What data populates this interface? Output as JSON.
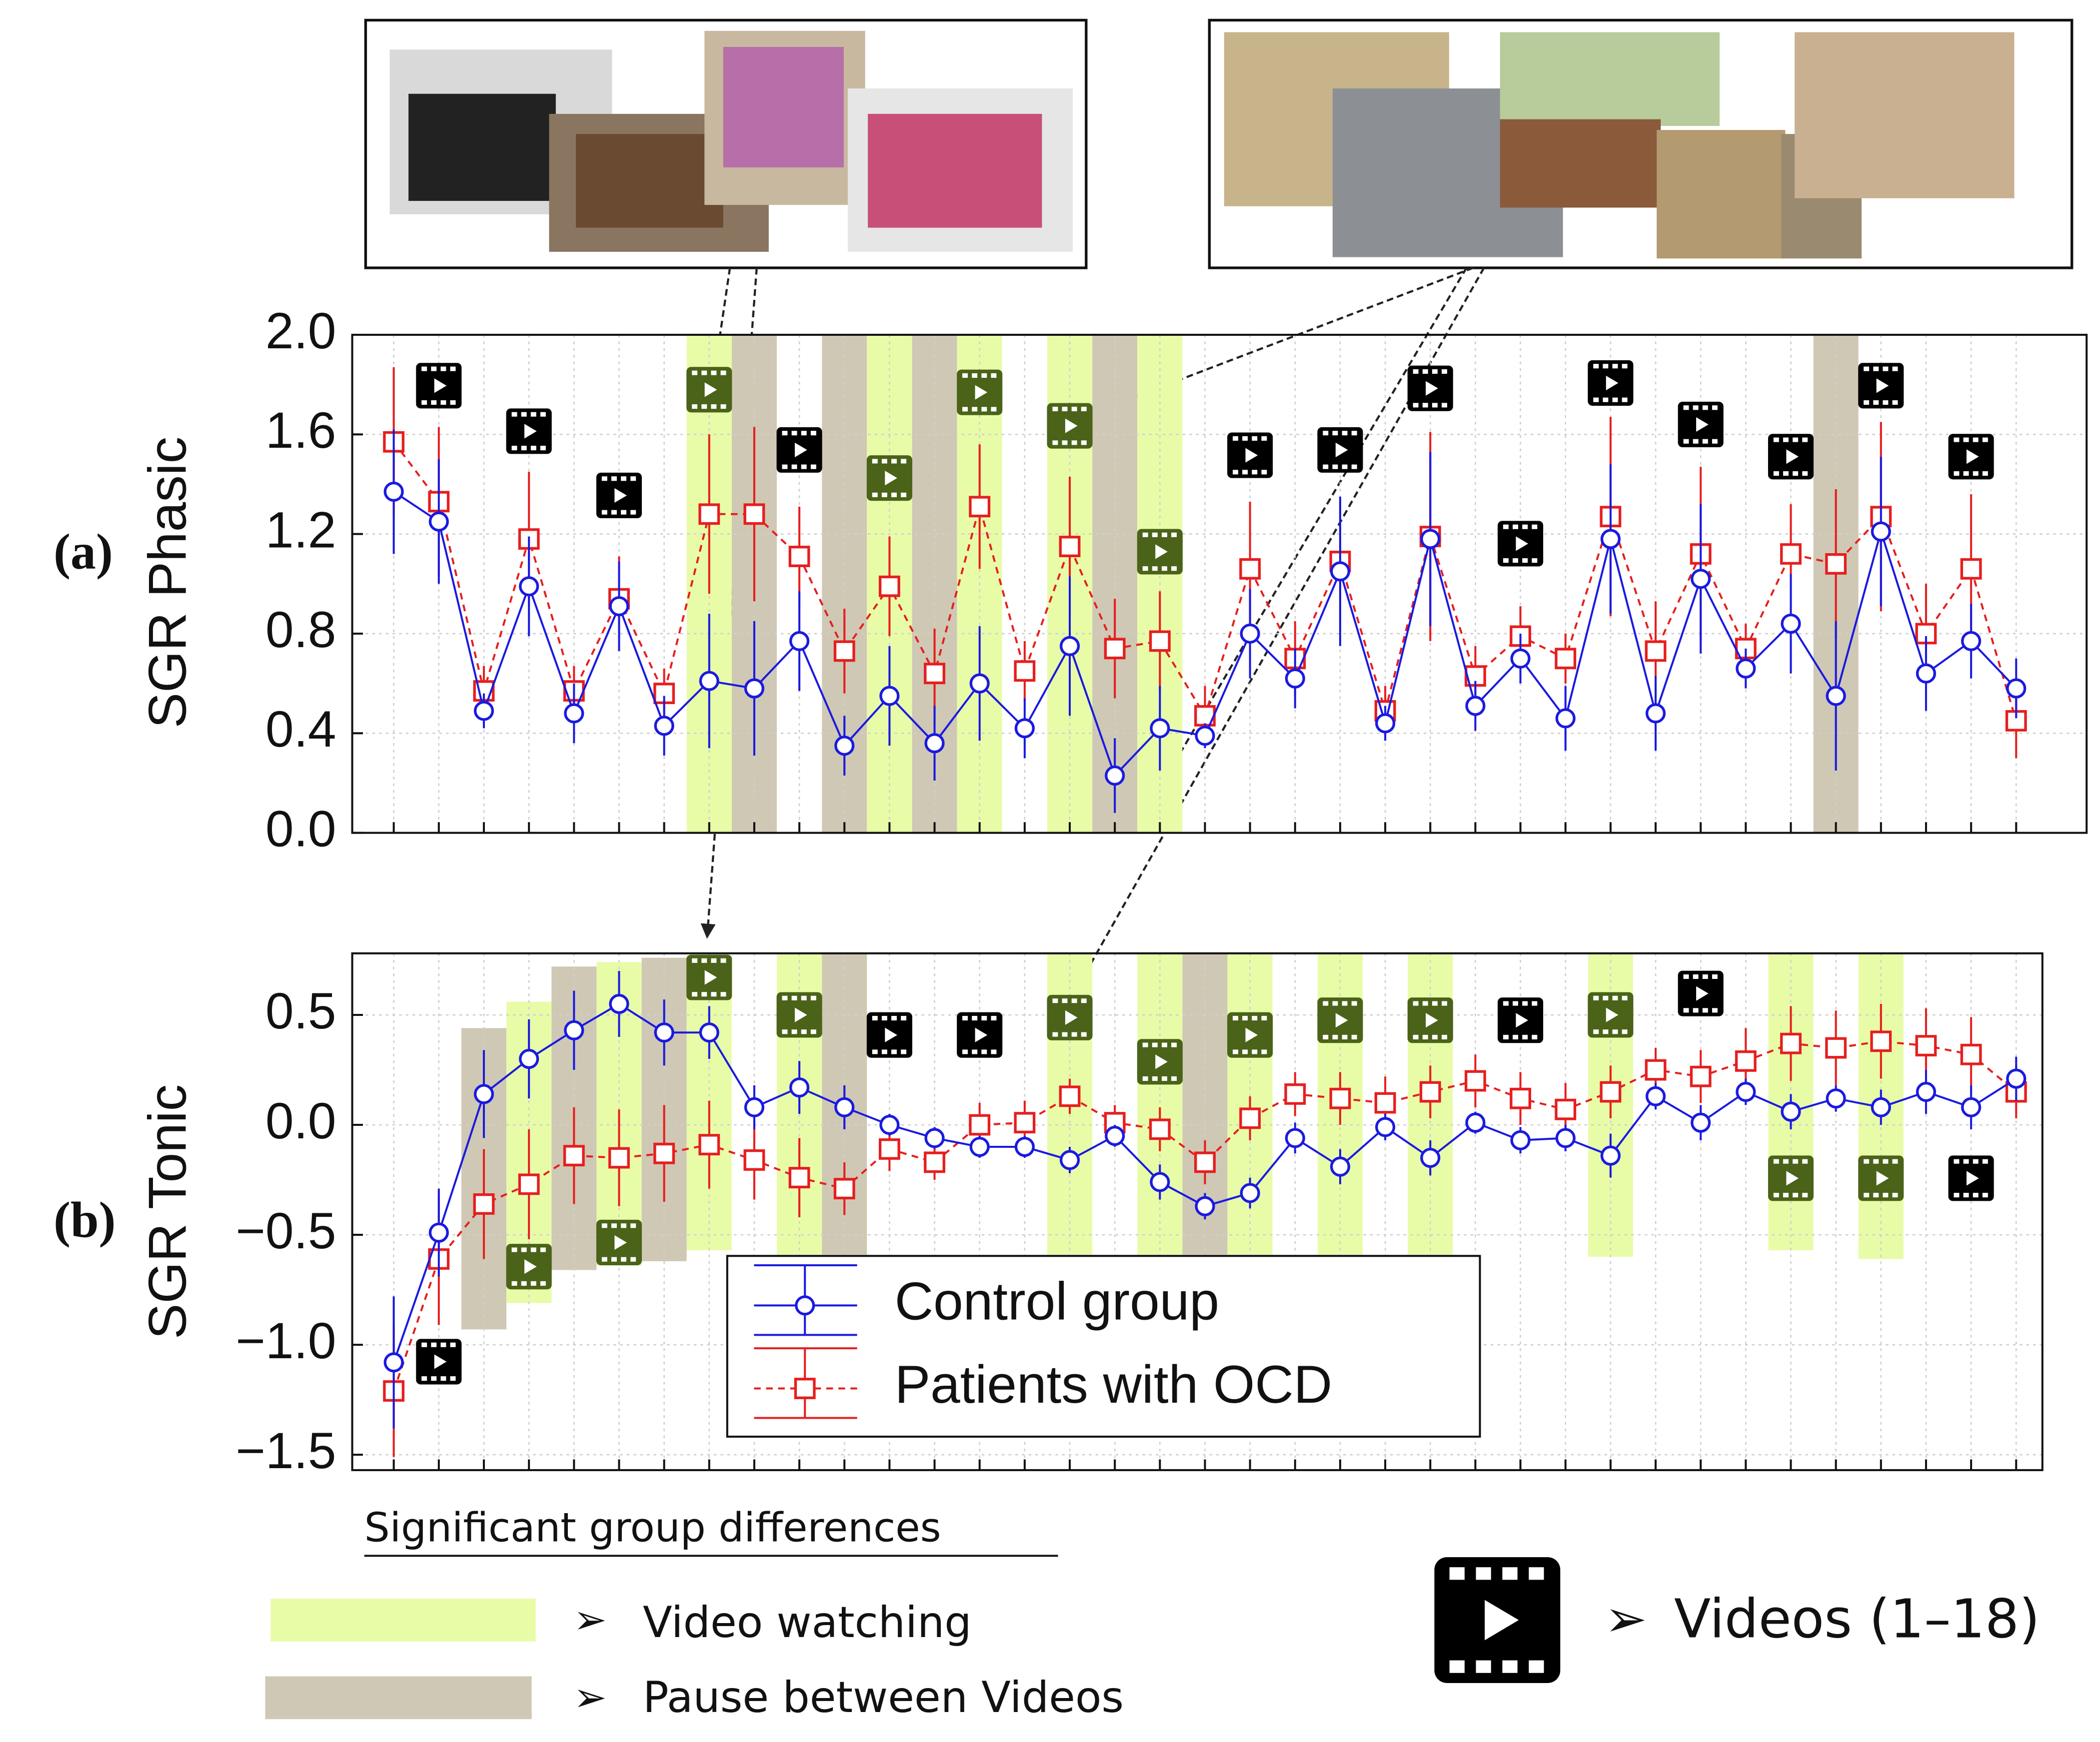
{
  "chart_data": [
    {
      "type": "line",
      "label": "(a)",
      "ylabel": "SGR Phasic",
      "categories": [
        null,
        null,
        null,
        null,
        null,
        null,
        null,
        null,
        null,
        null,
        null,
        null,
        null,
        null,
        null,
        null,
        null,
        null,
        null,
        null,
        null,
        null,
        null,
        null,
        null,
        null,
        null,
        null,
        null,
        null,
        null,
        null,
        null,
        null,
        null,
        null,
        null
      ],
      "ylim": [
        0,
        2.0
      ],
      "yticks": [
        {
          "value": 0,
          "label": "0.0"
        },
        {
          "value": 0.4,
          "label": "0.4"
        },
        {
          "value": 0.8,
          "label": "0.8"
        },
        {
          "value": 1.2,
          "label": "1.2"
        },
        {
          "value": 1.6,
          "label": "1.6"
        },
        {
          "value": 2.0,
          "label": "2.0"
        }
      ],
      "grid": true,
      "series": [
        {
          "color": "#1a1ae0",
          "marker": "circle",
          "line_style": "solid",
          "values": [
            1.37,
            1.25,
            0.49,
            0.99,
            0.48,
            0.91,
            0.43,
            0.61,
            0.58,
            0.77,
            0.35,
            0.55,
            0.36,
            0.6,
            0.42,
            0.75,
            0.23,
            0.42,
            0.39,
            0.8,
            0.62,
            1.05,
            0.44,
            1.18,
            0.51,
            0.7,
            0.46,
            1.18,
            0.48,
            1.02,
            0.66,
            0.84,
            0.55,
            1.21,
            0.64,
            0.77,
            0.58
          ],
          "errors": [
            0.25,
            0.25,
            0.07,
            0.2,
            0.12,
            0.18,
            0.12,
            0.27,
            0.27,
            0.2,
            0.12,
            0.2,
            0.15,
            0.23,
            0.12,
            0.28,
            0.15,
            0.17,
            0.05,
            0.18,
            0.12,
            0.3,
            0.07,
            0.35,
            0.1,
            0.1,
            0.13,
            0.3,
            0.15,
            0.3,
            0.08,
            0.2,
            0.3,
            0.3,
            0.15,
            0.15,
            0.12
          ]
        },
        {
          "color": "#e61e1e",
          "marker": "square",
          "line_style": "dashed",
          "values": [
            1.57,
            1.33,
            0.57,
            1.18,
            0.57,
            0.94,
            0.56,
            1.28,
            1.28,
            1.11,
            0.73,
            0.99,
            0.64,
            1.31,
            0.65,
            1.15,
            0.74,
            0.77,
            0.47,
            1.06,
            0.7,
            1.09,
            0.49,
            1.19,
            0.63,
            0.79,
            0.7,
            1.27,
            0.73,
            1.12,
            0.74,
            1.12,
            1.08,
            1.27,
            0.8,
            1.06,
            0.45
          ],
          "errors": [
            0.3,
            0.3,
            0.1,
            0.27,
            0.1,
            0.17,
            0.1,
            0.32,
            0.35,
            0.2,
            0.17,
            0.2,
            0.18,
            0.25,
            0.12,
            0.28,
            0.2,
            0.2,
            0.12,
            0.27,
            0.15,
            0.25,
            0.1,
            0.42,
            0.12,
            0.12,
            0.1,
            0.4,
            0.2,
            0.35,
            0.1,
            0.2,
            0.3,
            0.38,
            0.2,
            0.3,
            0.15
          ]
        }
      ],
      "bands": [
        {
          "index": 7,
          "kind": 0
        },
        {
          "index": 8,
          "kind": 1
        },
        {
          "index": 10,
          "kind": 1
        },
        {
          "index": 11,
          "kind": 0
        },
        {
          "index": 12,
          "kind": 1
        },
        {
          "index": 13,
          "kind": 0
        },
        {
          "index": 15,
          "kind": 0
        },
        {
          "index": 16,
          "kind": 1
        },
        {
          "index": 17,
          "kind": 0
        },
        {
          "index": 32,
          "kind": 1
        }
      ]
    },
    {
      "type": "line",
      "label": "(b)",
      "ylabel": "SGR Tonic",
      "categories": [
        null,
        null,
        null,
        null,
        null,
        null,
        null,
        null,
        null,
        null,
        null,
        null,
        null,
        null,
        null,
        null,
        null,
        null,
        null,
        null,
        null,
        null,
        null,
        null,
        null,
        null,
        null,
        null,
        null,
        null,
        null,
        null,
        null,
        null,
        null,
        null,
        null
      ],
      "ylim": [
        -1.57,
        0.78
      ],
      "yticks": [
        {
          "value": -1.5,
          "label": "−1.5"
        },
        {
          "value": -1.0,
          "label": "−1.0"
        },
        {
          "value": -0.5,
          "label": "−0.5"
        },
        {
          "value": 0,
          "label": "0.0"
        },
        {
          "value": 0.5,
          "label": "0.5"
        }
      ],
      "grid": true,
      "series": [
        {
          "name": "Control group",
          "color": "#1a1ae0",
          "marker": "circle",
          "line_style": "solid",
          "values": [
            -1.08,
            -0.49,
            0.14,
            0.3,
            0.43,
            0.55,
            0.42,
            0.42,
            0.08,
            0.17,
            0.08,
            0.0,
            -0.06,
            -0.1,
            -0.1,
            -0.16,
            -0.05,
            -0.26,
            -0.37,
            -0.31,
            -0.06,
            -0.19,
            -0.01,
            -0.15,
            0.01,
            -0.07,
            -0.06,
            -0.14,
            0.13,
            0.01,
            0.15,
            0.06,
            0.12,
            0.08,
            0.15,
            0.08,
            0.21
          ],
          "errors": [
            0.3,
            0.2,
            0.2,
            0.18,
            0.18,
            0.15,
            0.15,
            0.12,
            0.1,
            0.12,
            0.1,
            0.05,
            0.05,
            0.05,
            0.05,
            0.06,
            0.05,
            0.08,
            0.06,
            0.07,
            0.07,
            0.08,
            0.06,
            0.08,
            0.05,
            0.06,
            0.06,
            0.1,
            0.06,
            0.08,
            0.06,
            0.08,
            0.06,
            0.08,
            0.1,
            0.1,
            0.1
          ]
        },
        {
          "name": "Patients with OCD",
          "color": "#e61e1e",
          "marker": "square",
          "line_style": "dashed",
          "values": [
            -1.21,
            -0.61,
            -0.36,
            -0.27,
            -0.14,
            -0.15,
            -0.13,
            -0.09,
            -0.16,
            -0.24,
            -0.29,
            -0.11,
            -0.17,
            0.0,
            0.01,
            0.13,
            0.01,
            -0.02,
            -0.17,
            0.03,
            0.14,
            0.12,
            0.1,
            0.15,
            0.2,
            0.12,
            0.07,
            0.15,
            0.25,
            0.22,
            0.29,
            0.37,
            0.35,
            0.38,
            0.36,
            0.32,
            0.15
          ],
          "errors": [
            0.3,
            0.3,
            0.25,
            0.25,
            0.22,
            0.22,
            0.22,
            0.2,
            0.18,
            0.18,
            0.12,
            0.1,
            0.08,
            0.1,
            0.1,
            0.08,
            0.08,
            0.1,
            0.1,
            0.1,
            0.1,
            0.12,
            0.12,
            0.12,
            0.12,
            0.12,
            0.12,
            0.12,
            0.1,
            0.12,
            0.15,
            0.17,
            0.17,
            0.17,
            0.17,
            0.17,
            0.12
          ]
        }
      ],
      "bands": [
        {
          "index": 2,
          "kind": 1,
          "range": [
            -0.93,
            0.44
          ]
        },
        {
          "index": 3,
          "kind": 0,
          "range": [
            -0.81,
            0.56
          ]
        },
        {
          "index": 4,
          "kind": 1,
          "range": [
            -0.66,
            0.72
          ]
        },
        {
          "index": 5,
          "kind": 0,
          "range": [
            -0.64,
            0.74
          ]
        },
        {
          "index": 6,
          "kind": 1,
          "range": [
            -0.62,
            0.76
          ]
        },
        {
          "index": 7,
          "kind": 0,
          "range": [
            -0.57,
            0.77
          ]
        },
        {
          "index": 9,
          "kind": 0,
          "range": [
            -0.59,
            0.78
          ]
        },
        {
          "index": 10,
          "kind": 1,
          "range": [
            -0.59,
            0.78
          ]
        },
        {
          "index": 15,
          "kind": 0,
          "range": [
            -0.59,
            0.78
          ]
        },
        {
          "index": 17,
          "kind": 0,
          "range": [
            -0.59,
            0.78
          ]
        },
        {
          "index": 18,
          "kind": 1,
          "range": [
            -0.59,
            0.78
          ]
        },
        {
          "index": 19,
          "kind": 0,
          "range": [
            -0.59,
            0.78
          ]
        },
        {
          "index": 21,
          "kind": 0,
          "range": [
            -0.59,
            0.78
          ]
        },
        {
          "index": 23,
          "kind": 0,
          "range": [
            -0.59,
            0.78
          ]
        },
        {
          "index": 27,
          "kind": 0,
          "range": [
            -0.6,
            0.78
          ]
        },
        {
          "index": 31,
          "kind": 0,
          "range": [
            -0.57,
            0.78
          ]
        },
        {
          "index": 33,
          "kind": 0,
          "range": [
            -0.61,
            0.78
          ]
        }
      ]
    }
  ],
  "significance": {
    "title": "Significant group differences",
    "items": [
      {
        "label": "Video watching",
        "color": "#e8fca8"
      },
      {
        "label": "Pause between Videos",
        "color": "#cfc8b4"
      }
    ]
  },
  "videos_label": "Videos (1–18)"
}
